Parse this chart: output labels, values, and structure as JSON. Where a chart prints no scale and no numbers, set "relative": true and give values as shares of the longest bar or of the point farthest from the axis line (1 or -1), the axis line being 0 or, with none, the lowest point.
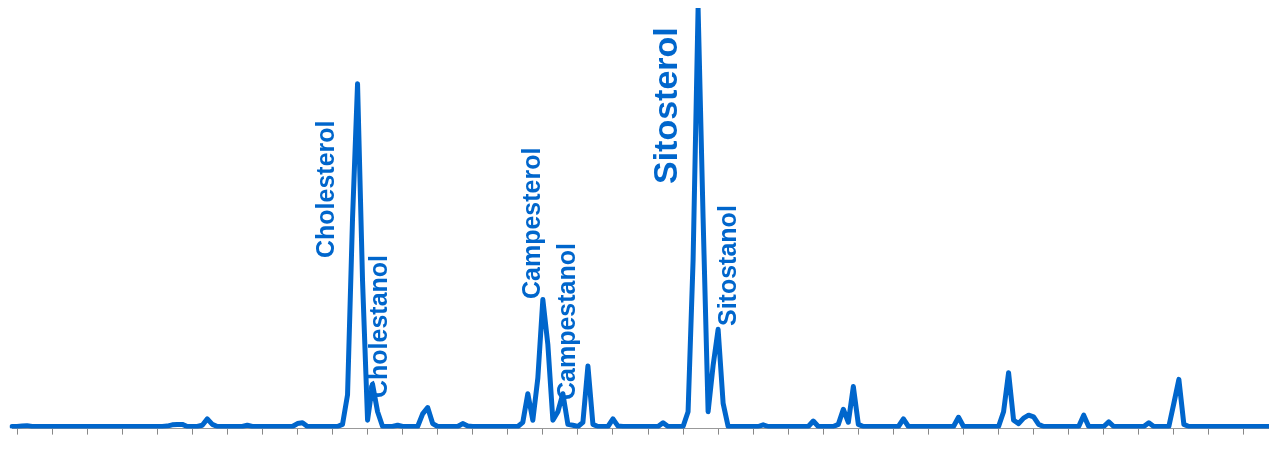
{
  "chart_data": {
    "type": "line",
    "relative": true,
    "color": "#0066cc",
    "marker": "none",
    "line_style": "solid",
    "grid": false,
    "legend": false,
    "categories": [
      null,
      null,
      null,
      null,
      null,
      null,
      null,
      null,
      null,
      null,
      null,
      null,
      null,
      null,
      null,
      null,
      null,
      null,
      null,
      null,
      null,
      null,
      null,
      null,
      null,
      null,
      null,
      null,
      null,
      null,
      null,
      null,
      null,
      null,
      null,
      null,
      null,
      null,
      null,
      null,
      null,
      null,
      null,
      null,
      null,
      null,
      null,
      null,
      null,
      null,
      null,
      null,
      null,
      null,
      null,
      null,
      null,
      null,
      null,
      null,
      null,
      null,
      null,
      null,
      null,
      null,
      null,
      null,
      null,
      null,
      null,
      null,
      null,
      null,
      null,
      null,
      null,
      null,
      null,
      null,
      null,
      null,
      null,
      null,
      null,
      null,
      null,
      null,
      null,
      null,
      null,
      null,
      null,
      null,
      null,
      null,
      null,
      null,
      null,
      null,
      null,
      null,
      null,
      null,
      null,
      null,
      null,
      null,
      null,
      null,
      null,
      null,
      null,
      null,
      null,
      null,
      null,
      null,
      null,
      null,
      null,
      null,
      null,
      null,
      null,
      null,
      null,
      null,
      null,
      null,
      null,
      null,
      null,
      null,
      null,
      null,
      null,
      null,
      null,
      null,
      null,
      null,
      null,
      null,
      null,
      null,
      null,
      null,
      null,
      null,
      null,
      null,
      null,
      null,
      null,
      null,
      null,
      null,
      null,
      null,
      null,
      null,
      null,
      null,
      null,
      null,
      null,
      null,
      null,
      null,
      null,
      null,
      null,
      null,
      null,
      null,
      null,
      null,
      null,
      null,
      null,
      null,
      null,
      null,
      null,
      null,
      null,
      null,
      null,
      null,
      null,
      null,
      null,
      null,
      null,
      null,
      null,
      null,
      null,
      null,
      null,
      null,
      null,
      null,
      null,
      null,
      null,
      null,
      null,
      null,
      null,
      null,
      null,
      null,
      null,
      null,
      null,
      null,
      null,
      null,
      null,
      null,
      null,
      null,
      null,
      null,
      null,
      null,
      null,
      null,
      null,
      null,
      null,
      null,
      null,
      null,
      null,
      null,
      null,
      null,
      null,
      null,
      null,
      null,
      null,
      null,
      null,
      null,
      null,
      null,
      null,
      null
    ],
    "values": [
      0.005,
      0.005,
      0.006,
      0.007,
      0.005,
      0.005,
      0.005,
      0.005,
      0.005,
      0.005,
      0.005,
      0.005,
      0.005,
      0.005,
      0.005,
      0.005,
      0.005,
      0.005,
      0.005,
      0.005,
      0.005,
      0.005,
      0.005,
      0.005,
      0.005,
      0.005,
      0.005,
      0.005,
      0.005,
      0.005,
      0.005,
      0.006,
      0.009,
      0.01,
      0.01,
      0.005,
      0.005,
      0.005,
      0.008,
      0.023,
      0.01,
      0.005,
      0.005,
      0.005,
      0.005,
      0.005,
      0.005,
      0.008,
      0.005,
      0.005,
      0.005,
      0.005,
      0.005,
      0.005,
      0.005,
      0.005,
      0.005,
      0.012,
      0.014,
      0.005,
      0.005,
      0.005,
      0.005,
      0.005,
      0.005,
      0.005,
      0.01,
      0.08,
      0.5,
      0.82,
      0.35,
      0.02,
      0.105,
      0.04,
      0.005,
      0.005,
      0.005,
      0.008,
      0.005,
      0.005,
      0.005,
      0.005,
      0.035,
      0.05,
      0.012,
      0.005,
      0.005,
      0.005,
      0.005,
      0.005,
      0.012,
      0.006,
      0.005,
      0.005,
      0.005,
      0.005,
      0.005,
      0.005,
      0.005,
      0.005,
      0.005,
      0.005,
      0.015,
      0.083,
      0.02,
      0.12,
      0.307,
      0.2,
      0.02,
      0.04,
      0.083,
      0.01,
      0.008,
      0.005,
      0.015,
      0.149,
      0.01,
      0.005,
      0.005,
      0.005,
      0.023,
      0.006,
      0.005,
      0.005,
      0.005,
      0.005,
      0.005,
      0.005,
      0.005,
      0.005,
      0.014,
      0.005,
      0.005,
      0.005,
      0.005,
      0.04,
      0.4,
      1,
      0.5,
      0.04,
      0.15,
      0.236,
      0.06,
      0.005,
      0.005,
      0.005,
      0.005,
      0.005,
      0.005,
      0.005,
      0.009,
      0.005,
      0.005,
      0.005,
      0.005,
      0.005,
      0.005,
      0.005,
      0.005,
      0.005,
      0.018,
      0.005,
      0.005,
      0.005,
      0.005,
      0.01,
      0.046,
      0.015,
      0.1,
      0.01,
      0.005,
      0.005,
      0.005,
      0.005,
      0.005,
      0.005,
      0.005,
      0.005,
      0.023,
      0.005,
      0.005,
      0.005,
      0.005,
      0.005,
      0.005,
      0.005,
      0.005,
      0.005,
      0.005,
      0.027,
      0.005,
      0.005,
      0.005,
      0.005,
      0.005,
      0.005,
      0.005,
      0.005,
      0.04,
      0.133,
      0.02,
      0.012,
      0.025,
      0.032,
      0.028,
      0.01,
      0.005,
      0.005,
      0.005,
      0.005,
      0.005,
      0.005,
      0.005,
      0.005,
      0.032,
      0.005,
      0.005,
      0.005,
      0.005,
      0.016,
      0.005,
      0.005,
      0.005,
      0.005,
      0.005,
      0.005,
      0.005,
      0.014,
      0.005,
      0.005,
      0.005,
      0.005,
      0.06,
      0.117,
      0.01,
      0.005,
      0.005,
      0.005,
      0.005,
      0.005,
      0.005,
      0.005,
      0.005,
      0.005,
      0.005,
      0.005,
      0.005,
      0.005,
      0.005,
      0.005,
      0.005,
      0.005
    ],
    "annotations": [
      "Cholesterol",
      "Cholestanol",
      "Campesterol",
      "Campestanol",
      "Sitosterol",
      "Sitostanol"
    ]
  }
}
